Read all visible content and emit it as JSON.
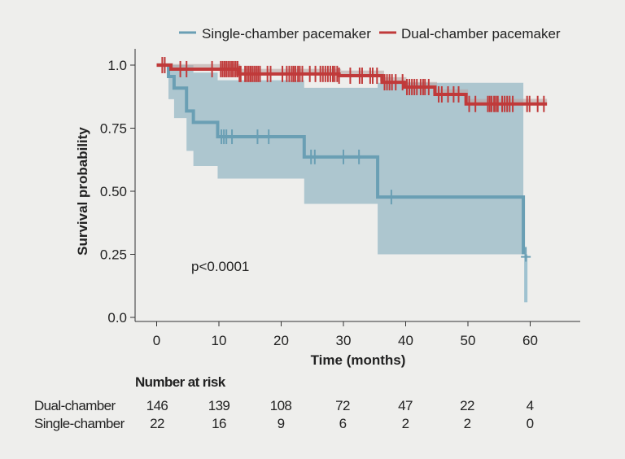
{
  "chart_data": {
    "type": "line",
    "subtype": "kaplan-meier",
    "xlabel": "Time (months)",
    "ylabel": "Survival probability",
    "xlim": [
      -3,
      63
    ],
    "ylim": [
      0,
      1.0
    ],
    "xticks": [
      0,
      10,
      20,
      30,
      40,
      50,
      60
    ],
    "yticks": [
      "0.0",
      "0.25",
      "0.50",
      "0.75",
      "1.0"
    ],
    "grid": false,
    "legend_position": "top",
    "annotation": "p<0.0001",
    "series": [
      {
        "name": "Single-chamber pacemaker",
        "color": "#6a9fb4",
        "ci_color": "#a9c3ce",
        "steps": [
          [
            0,
            1.0
          ],
          [
            1.9,
            0.955
          ],
          [
            2.8,
            0.909
          ],
          [
            4.8,
            0.818
          ],
          [
            5.9,
            0.773
          ],
          [
            9.8,
            0.716
          ],
          [
            23.7,
            0.636
          ],
          [
            35.5,
            0.477
          ],
          [
            58.9,
            0.25
          ]
        ],
        "end": 59.3,
        "ci_upper": [
          [
            0,
            1.0
          ],
          [
            5.9,
            0.97
          ],
          [
            9.8,
            0.94
          ],
          [
            23.7,
            0.91
          ],
          [
            35.5,
            0.93
          ],
          [
            58.9,
            0.93
          ]
        ],
        "ci_lower": [
          [
            0,
            1.0
          ],
          [
            1.9,
            0.865
          ],
          [
            2.8,
            0.79
          ],
          [
            4.8,
            0.66
          ],
          [
            5.9,
            0.6
          ],
          [
            9.8,
            0.55
          ],
          [
            23.7,
            0.45
          ],
          [
            35.5,
            0.25
          ],
          [
            58.9,
            0.25
          ]
        ],
        "final_ci_lower": 0.06,
        "censored": [
          1.3,
          10.4,
          10.8,
          11.2,
          12.1,
          16.2,
          18.0,
          24.8,
          25.4,
          30.0,
          32.5,
          37.7,
          59.3
        ]
      },
      {
        "name": "Dual-chamber pacemaker",
        "color": "#c03a3a",
        "steps": [
          [
            0,
            1.0
          ],
          [
            2.3,
            0.984
          ],
          [
            13.1,
            0.965
          ],
          [
            29.3,
            0.958
          ],
          [
            36.2,
            0.932
          ],
          [
            39.8,
            0.913
          ],
          [
            44.7,
            0.884
          ],
          [
            49.7,
            0.846
          ]
        ],
        "end": 62.7,
        "censored": [
          0.9,
          1.3,
          3.8,
          4.8,
          8.9,
          10.3,
          10.6,
          10.9,
          11.2,
          11.5,
          11.8,
          12.1,
          12.4,
          12.7,
          13.0,
          13.3,
          13.5,
          14.2,
          14.5,
          14.8,
          15.1,
          15.4,
          15.7,
          16.0,
          16.3,
          16.6,
          17.8,
          18.3,
          20.2,
          20.9,
          21.3,
          21.7,
          22.0,
          22.3,
          22.7,
          23.0,
          23.4,
          24.6,
          25.5,
          26.3,
          26.7,
          27.1,
          27.5,
          27.9,
          28.3,
          28.6,
          29.0,
          29.3,
          31.1,
          32.6,
          33.0,
          34.3,
          34.7,
          35.4,
          36.6,
          37.0,
          37.4,
          37.8,
          38.4,
          39.5,
          40.2,
          40.6,
          41.0,
          41.4,
          41.8,
          42.4,
          42.8,
          43.1,
          43.7,
          45.3,
          45.8,
          46.8,
          47.7,
          48.5,
          50.2,
          51.2,
          53.2,
          53.5,
          53.8,
          54.2,
          54.5,
          54.8,
          55.5,
          55.9,
          56.3,
          56.7,
          57.2,
          59.5,
          59.9,
          61.2,
          62.2
        ]
      }
    ],
    "risk_table": {
      "title": "Number at risk",
      "rows": [
        {
          "label": "Dual-chamber",
          "values": [
            "146",
            "139",
            "108",
            "72",
            "47",
            "22",
            "4"
          ]
        },
        {
          "label": "Single-chamber",
          "values": [
            "22",
            "16",
            "9",
            "6",
            "2",
            "2",
            "0"
          ]
        }
      ]
    }
  }
}
